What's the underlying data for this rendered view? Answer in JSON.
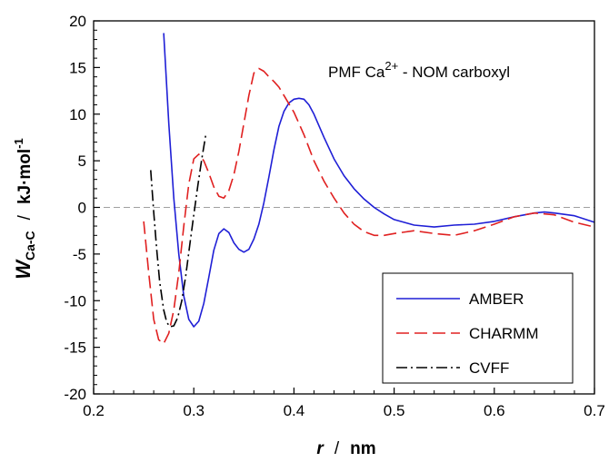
{
  "chart_data": {
    "type": "line",
    "title": "",
    "annotation": {
      "prefix": "PMF Ca",
      "superscript": "2+",
      "suffix": " - NOM carboxyl"
    },
    "xlabel": {
      "symbol": "r",
      "separator": "/",
      "unit": "nm"
    },
    "ylabel": {
      "symbol": "W",
      "subscript": "Ca-C",
      "separator": "/",
      "unit": "kJ·mol",
      "unit_superscript": "-1"
    },
    "xlim": [
      0.2,
      0.7
    ],
    "ylim": [
      -20,
      20
    ],
    "x_ticks": [
      "0.2",
      "0.3",
      "0.4",
      "0.5",
      "0.6",
      "0.7"
    ],
    "y_ticks": [
      "-20",
      "-15",
      "-10",
      "-5",
      "0",
      "5",
      "10",
      "15",
      "20"
    ],
    "zero_line": {
      "y": 0,
      "color": "#a0a0a0",
      "style": "dashed"
    },
    "grid": false,
    "legend_position": "bottom-right",
    "series": [
      {
        "name": "AMBER",
        "color": "#1f1fd6",
        "style": "solid",
        "x": [
          0.27,
          0.275,
          0.28,
          0.285,
          0.29,
          0.295,
          0.3,
          0.305,
          0.31,
          0.315,
          0.32,
          0.325,
          0.33,
          0.335,
          0.34,
          0.345,
          0.35,
          0.355,
          0.36,
          0.365,
          0.37,
          0.375,
          0.38,
          0.385,
          0.39,
          0.395,
          0.4,
          0.405,
          0.41,
          0.415,
          0.42,
          0.43,
          0.44,
          0.45,
          0.46,
          0.47,
          0.48,
          0.49,
          0.5,
          0.52,
          0.54,
          0.56,
          0.58,
          0.6,
          0.62,
          0.64,
          0.65,
          0.66,
          0.68,
          0.7
        ],
        "y": [
          18.7,
          9.0,
          1.0,
          -5.0,
          -9.5,
          -12.0,
          -12.8,
          -12.2,
          -10.3,
          -7.5,
          -4.6,
          -2.8,
          -2.3,
          -2.7,
          -3.8,
          -4.5,
          -4.8,
          -4.5,
          -3.4,
          -1.8,
          0.5,
          3.3,
          6.2,
          8.7,
          10.3,
          11.2,
          11.6,
          11.7,
          11.6,
          11.0,
          10.0,
          7.5,
          5.2,
          3.4,
          2.0,
          0.9,
          0.0,
          -0.7,
          -1.3,
          -1.9,
          -2.1,
          -1.9,
          -1.8,
          -1.5,
          -1.0,
          -0.6,
          -0.5,
          -0.6,
          -0.9,
          -1.6
        ]
      },
      {
        "name": "CHARMM",
        "color": "#e02020",
        "style": "dashed",
        "x": [
          0.25,
          0.255,
          0.26,
          0.265,
          0.27,
          0.275,
          0.28,
          0.285,
          0.29,
          0.295,
          0.3,
          0.305,
          0.31,
          0.315,
          0.32,
          0.325,
          0.33,
          0.335,
          0.34,
          0.345,
          0.35,
          0.355,
          0.36,
          0.365,
          0.37,
          0.375,
          0.38,
          0.385,
          0.39,
          0.4,
          0.41,
          0.42,
          0.43,
          0.44,
          0.45,
          0.46,
          0.47,
          0.48,
          0.49,
          0.5,
          0.52,
          0.54,
          0.56,
          0.58,
          0.6,
          0.62,
          0.64,
          0.66,
          0.68,
          0.7
        ],
        "y": [
          -1.5,
          -7.0,
          -12.0,
          -14.2,
          -14.6,
          -13.5,
          -11.0,
          -7.0,
          -2.0,
          2.5,
          5.2,
          5.7,
          5.0,
          3.7,
          2.2,
          1.2,
          1.0,
          1.8,
          3.5,
          6.0,
          9.0,
          12.0,
          14.4,
          14.9,
          14.6,
          14.0,
          13.5,
          12.9,
          12.0,
          10.2,
          7.8,
          5.0,
          2.8,
          1.0,
          -0.6,
          -1.8,
          -2.6,
          -3.0,
          -3.0,
          -2.8,
          -2.5,
          -2.8,
          -3.0,
          -2.5,
          -1.8,
          -1.0,
          -0.6,
          -0.8,
          -1.6,
          -2.1
        ]
      },
      {
        "name": "CVFF",
        "color": "#000000",
        "style": "dashdot",
        "x": [
          0.257,
          0.26,
          0.263,
          0.266,
          0.27,
          0.273,
          0.276,
          0.28,
          0.284,
          0.288,
          0.292,
          0.296,
          0.3,
          0.304,
          0.308,
          0.312
        ],
        "y": [
          4.0,
          -0.5,
          -4.5,
          -8.0,
          -11.0,
          -12.3,
          -12.8,
          -12.7,
          -11.8,
          -10.0,
          -7.3,
          -4.0,
          -0.8,
          2.3,
          5.2,
          7.8
        ]
      }
    ]
  }
}
